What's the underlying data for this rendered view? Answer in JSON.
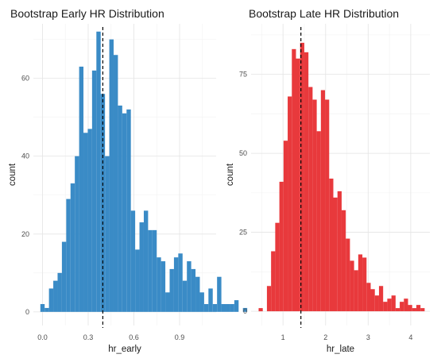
{
  "chart_data": [
    {
      "type": "bar",
      "title": "Bootstrap Early HR Distribution",
      "xlabel": "hr_early",
      "ylabel": "count",
      "color": "#3a8bc6",
      "bin_width": 0.0283,
      "bin_start": -0.0142,
      "counts": [
        2,
        1,
        6,
        8,
        10,
        18,
        29,
        33,
        40,
        63,
        46,
        47,
        62,
        72,
        56,
        40,
        70,
        66,
        53,
        51,
        52,
        26,
        16,
        23,
        26,
        21,
        21,
        14,
        13,
        5,
        11,
        14,
        15,
        8,
        13,
        11,
        9,
        5,
        2,
        6,
        2,
        9,
        2,
        2,
        2,
        3,
        0,
        1
      ],
      "xlim": [
        -0.06,
        1.14
      ],
      "ylim": [
        -3.5,
        74
      ],
      "xticks": [
        0.0,
        0.3,
        0.6,
        0.9
      ],
      "xtick_labels": [
        "0.0",
        "0.3",
        "0.6",
        "0.9"
      ],
      "yticks": [
        0,
        20,
        40,
        60
      ],
      "ytick_labels": [
        "0",
        "20",
        "40",
        "60"
      ],
      "vline": 0.396
    },
    {
      "type": "bar",
      "title": "Bootstrap Late HR Distribution",
      "xlabel": "hr_late",
      "ylabel": "count",
      "color": "#e8393c",
      "bin_width": 0.0975,
      "bin_start": 0.427,
      "counts": [
        1,
        0,
        8,
        19,
        28,
        41,
        54,
        68,
        83,
        80,
        85,
        82,
        71,
        67,
        57,
        70,
        67,
        42,
        36,
        38,
        32,
        23,
        16,
        13,
        18,
        17,
        9,
        7,
        5,
        8,
        3,
        4,
        5,
        1,
        3,
        4,
        2,
        1,
        2,
        1
      ],
      "xlim": [
        0.25,
        4.45
      ],
      "ylim": [
        -4.5,
        91
      ],
      "xticks": [
        1,
        2,
        3,
        4
      ],
      "xtick_labels": [
        "1",
        "2",
        "3",
        "4"
      ],
      "yticks": [
        0,
        25,
        50,
        75
      ],
      "ytick_labels": [
        "0",
        "25",
        "50",
        "75"
      ],
      "vline": 1.42
    }
  ]
}
